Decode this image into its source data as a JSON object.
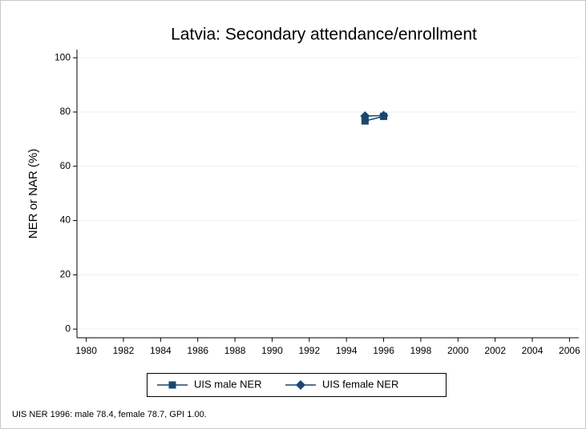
{
  "chart_data": {
    "type": "line",
    "title": "Latvia: Secondary attendance/enrollment",
    "y_label": "NER or NAR (%)",
    "note": "UIS NER 1996: male 78.4, female 78.7, GPI 1.00.",
    "x": [
      1995,
      1996
    ],
    "series": [
      {
        "name": "UIS male NER",
        "color": "#1a476f",
        "marker": "square",
        "values": [
          76.7,
          78.4
        ]
      },
      {
        "name": "UIS female NER",
        "color": "#1a476f",
        "marker": "diamond",
        "values": [
          78.5,
          78.7
        ]
      }
    ],
    "xlim": [
      1979.5,
      2006.5
    ],
    "xticks": [
      1980,
      1982,
      1984,
      1986,
      1988,
      1990,
      1992,
      1994,
      1996,
      1998,
      2000,
      2002,
      2004,
      2006
    ],
    "ylim": [
      -3.2,
      103
    ],
    "yticks": [
      0,
      20,
      40,
      60,
      80,
      100
    ],
    "grid": true
  }
}
